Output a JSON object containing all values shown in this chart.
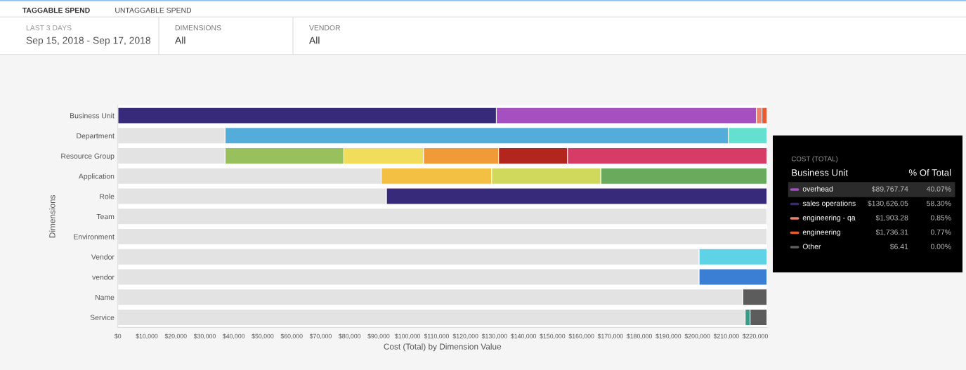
{
  "chart_data": {
    "type": "bar",
    "orientation": "horizontal",
    "stacked": true,
    "xlabel": "Cost (Total) by Dimension Value",
    "ylabel": "Dimensions",
    "categories": [
      "Business Unit",
      "Department",
      "Resource Group",
      "Application",
      "Role",
      "Team",
      "Environment",
      "Vendor",
      "vendor",
      "Name",
      "Service"
    ],
    "series": [
      {
        "color": "#e3e3e3",
        "values": [
          null,
          37000,
          37000,
          90900,
          92700,
          224000,
          224000,
          200600,
          200600,
          215700,
          216500
        ]
      },
      {
        "colors": [
          "#372a7a",
          "#54acdb",
          "#98c05c",
          "#f4c044",
          "#372a7a",
          null,
          null,
          "#5fd3e6",
          "#3a7fd4",
          "#5c5c5c",
          "#3a9a88"
        ],
        "values": [
          130626.05,
          173700,
          41000,
          38100,
          131300,
          null,
          null,
          23400,
          23400,
          8300,
          1700
        ]
      },
      {
        "colors": [
          "#a64fc0",
          "#64e0d0",
          "#f0dd5c",
          "#d1d95c",
          null,
          null,
          null,
          null,
          null,
          null,
          "#5c5c5c"
        ],
        "values": [
          89767.74,
          13300,
          27500,
          37700,
          null,
          null,
          null,
          null,
          null,
          null,
          5800
        ]
      },
      {
        "colors": [
          "#ee8070",
          null,
          "#f09a38",
          "#6aaa5c",
          null,
          null,
          null,
          null,
          null,
          null,
          null
        ],
        "values": [
          1903.28,
          null,
          25900,
          57300,
          null,
          null,
          null,
          null,
          null,
          null,
          null
        ]
      },
      {
        "colors": [
          "#e85a30",
          null,
          "#b3261e",
          null,
          null,
          null,
          null,
          null,
          null,
          null,
          null
        ],
        "values": [
          1736.31,
          null,
          23800,
          null,
          null,
          null,
          null,
          null,
          null,
          null,
          null
        ]
      },
      {
        "colors": [
          "#5c5c5c",
          null,
          "#d63c66",
          null,
          null,
          null,
          null,
          null,
          null,
          null,
          null
        ],
        "values": [
          null,
          null,
          68800,
          null,
          null,
          null,
          null,
          null,
          null,
          null,
          null
        ]
      }
    ],
    "xlim": [
      0,
      224040
    ],
    "xticks": [
      {
        "value": 0,
        "label": "$0"
      },
      {
        "value": 10000,
        "label": "$10,000"
      },
      {
        "value": 20000,
        "label": "$20,000"
      },
      {
        "value": 30000,
        "label": "$30,000"
      },
      {
        "value": 40000,
        "label": "$40,000"
      },
      {
        "value": 50000,
        "label": "$50,000"
      },
      {
        "value": 60000,
        "label": "$60,000"
      },
      {
        "value": 70000,
        "label": "$70,000"
      },
      {
        "value": 80000,
        "label": "$80,000"
      },
      {
        "value": 90000,
        "label": "$90,000"
      },
      {
        "value": 100000,
        "label": "$100,000"
      },
      {
        "value": 110000,
        "label": "$110,000"
      },
      {
        "value": 120000,
        "label": "$120,000"
      },
      {
        "value": 130000,
        "label": "$130,000"
      },
      {
        "value": 140000,
        "label": "$140,000"
      },
      {
        "value": 150000,
        "label": "$150,000"
      },
      {
        "value": 160000,
        "label": "$160,000"
      },
      {
        "value": 170000,
        "label": "$170,000"
      },
      {
        "value": 180000,
        "label": "$180,000"
      },
      {
        "value": 190000,
        "label": "$190,000"
      },
      {
        "value": 200000,
        "label": "$200,000"
      },
      {
        "value": 210000,
        "label": "$210,000"
      },
      {
        "value": 220000,
        "label": "$220,000"
      }
    ],
    "grid": false,
    "annotations": [
      "TAGGABLE SPEND",
      "UNTAGGABLE SPEND",
      "LAST 3 DAYS",
      "Sep 15, 2018 - Sep 17, 2018",
      "DIMENSIONS",
      "All",
      "VENDOR",
      "All",
      "COST (TOTAL)",
      "Business Unit",
      "% Of Total",
      "overhead",
      "$89,767.74",
      "40.07%",
      "sales operations",
      "$130,626.05",
      "58.30%",
      "engineering - qa",
      "$1,903.28",
      "0.85%",
      "engineering",
      "$1,736.31",
      "0.77%",
      "Other",
      "$6.41",
      "0.00%"
    ]
  }
}
